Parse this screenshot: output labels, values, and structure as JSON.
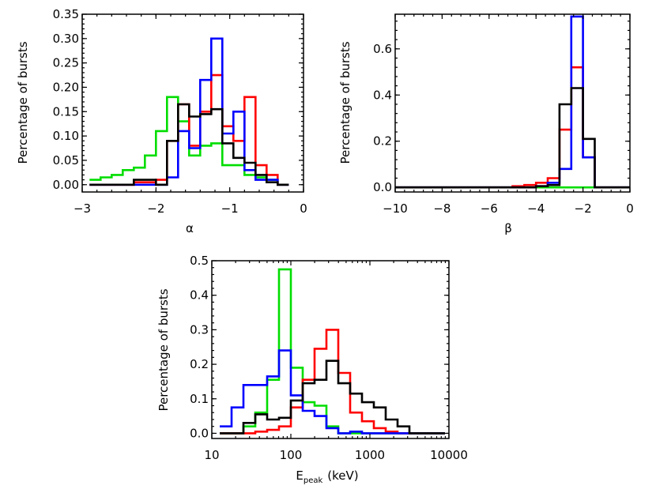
{
  "colors": {
    "red": "#ff0000",
    "green": "#00dd00",
    "blue": "#0000ff",
    "black": "#000000"
  },
  "chart_data": [
    {
      "id": "alpha",
      "type": "histogram",
      "xlabel": "α",
      "ylabel": "Percentage of bursts",
      "xlim": [
        -3,
        0
      ],
      "ylim": [
        -0.015,
        0.35
      ],
      "xticks": [
        -3,
        -2,
        -1,
        0
      ],
      "xtick_labels": [
        "−3",
        "−2",
        "−1",
        "0"
      ],
      "yticks": [
        0.0,
        0.05,
        0.1,
        0.15,
        0.2,
        0.25,
        0.3,
        0.35
      ],
      "ytick_labels": [
        "0.00",
        "0.05",
        "0.10",
        "0.15",
        "0.20",
        "0.25",
        "0.30",
        "0.35"
      ],
      "bin_edges": [
        -2.9,
        -2.75,
        -2.6,
        -2.45,
        -2.3,
        -2.15,
        -2.0,
        -1.85,
        -1.7,
        -1.55,
        -1.4,
        -1.25,
        -1.1,
        -0.95,
        -0.8,
        -0.65,
        -0.5,
        -0.35,
        -0.2
      ],
      "series": [
        {
          "color": "green",
          "values": [
            0.01,
            0.015,
            0.02,
            0.03,
            0.035,
            0.06,
            0.11,
            0.18,
            0.13,
            0.06,
            0.08,
            0.085,
            0.04,
            0.04,
            0.02,
            0.015,
            0.01,
            0.0
          ]
        },
        {
          "color": "red",
          "values": [
            0.0,
            0.0,
            0.0,
            0.0,
            0.005,
            0.005,
            0.01,
            0.09,
            0.165,
            0.08,
            0.15,
            0.225,
            0.12,
            0.09,
            0.18,
            0.04,
            0.02,
            0.0
          ]
        },
        {
          "color": "blue",
          "values": [
            0.0,
            0.0,
            0.0,
            0.0,
            0.0,
            0.0,
            0.0,
            0.015,
            0.11,
            0.075,
            0.215,
            0.3,
            0.105,
            0.15,
            0.03,
            0.01,
            0.01,
            0.0
          ]
        },
        {
          "color": "black",
          "values": [
            0.0,
            0.0,
            0.0,
            0.0,
            0.01,
            0.01,
            0.0,
            0.09,
            0.165,
            0.14,
            0.145,
            0.155,
            0.085,
            0.055,
            0.045,
            0.02,
            0.005,
            0.0
          ]
        }
      ]
    },
    {
      "id": "beta",
      "type": "histogram",
      "xlabel": "β",
      "ylabel": "Percentage of bursts",
      "xlim": [
        -10,
        0
      ],
      "ylim": [
        -0.02,
        0.75
      ],
      "xticks": [
        -10,
        -8,
        -6,
        -4,
        -2,
        0
      ],
      "xtick_labels": [
        "−10",
        "−8",
        "−6",
        "−4",
        "−2",
        "0"
      ],
      "yticks": [
        0.0,
        0.2,
        0.4,
        0.6
      ],
      "ytick_labels": [
        "0.0",
        "0.2",
        "0.4",
        "0.6"
      ],
      "bin_edges": [
        -10.0,
        -9.5,
        -9.0,
        -8.5,
        -8.0,
        -7.5,
        -7.0,
        -6.5,
        -6.0,
        -5.5,
        -5.0,
        -4.5,
        -4.0,
        -3.5,
        -3.0,
        -2.5,
        -2.0,
        -1.5,
        -1.0,
        -0.5,
        0.0
      ],
      "series": [
        {
          "color": "green",
          "values": [
            0,
            0,
            0,
            0,
            0,
            0,
            0,
            0,
            0,
            0,
            0,
            0,
            0,
            0,
            0,
            0,
            0,
            0,
            0,
            0
          ]
        },
        {
          "color": "red",
          "values": [
            0,
            0,
            0,
            0,
            0,
            0,
            0,
            0,
            0,
            0,
            0.005,
            0.01,
            0.02,
            0.04,
            0.25,
            0.52,
            0.13,
            0,
            0,
            0
          ]
        },
        {
          "color": "blue",
          "values": [
            0,
            0,
            0,
            0,
            0,
            0,
            0,
            0,
            0,
            0,
            0,
            0,
            0.005,
            0.02,
            0.08,
            0.74,
            0.13,
            0,
            0,
            0
          ]
        },
        {
          "color": "black",
          "values": [
            0,
            0,
            0,
            0,
            0,
            0,
            0,
            0,
            0,
            0,
            0,
            0,
            0.005,
            0.01,
            0.36,
            0.43,
            0.21,
            0,
            0,
            0
          ]
        }
      ]
    },
    {
      "id": "epeak",
      "type": "histogram",
      "xscale": "log",
      "xlabel_main": "E",
      "xlabel_sub": "peak",
      "xlabel_unit": "(keV)",
      "ylabel": "Percentage of bursts",
      "xlim": [
        10,
        10000
      ],
      "ylim": [
        -0.015,
        0.5
      ],
      "xticks": [
        10,
        100,
        1000,
        10000
      ],
      "xtick_labels": [
        "10",
        "100",
        "1000",
        "10000"
      ],
      "yticks": [
        0.0,
        0.1,
        0.2,
        0.3,
        0.4,
        0.5
      ],
      "ytick_labels": [
        "0.0",
        "0.1",
        "0.2",
        "0.3",
        "0.4",
        "0.5"
      ],
      "bin_edges_log10": [
        1.1,
        1.25,
        1.4,
        1.55,
        1.7,
        1.85,
        2.0,
        2.15,
        2.3,
        2.45,
        2.6,
        2.75,
        2.9,
        3.05,
        3.2,
        3.35,
        3.5,
        3.65,
        3.8,
        3.95
      ],
      "series": [
        {
          "color": "green",
          "values": [
            0,
            0,
            0.02,
            0.06,
            0.155,
            0.475,
            0.19,
            0.09,
            0.08,
            0.02,
            0,
            0,
            0,
            0,
            0,
            0,
            0,
            0,
            0
          ]
        },
        {
          "color": "red",
          "values": [
            0,
            0,
            0,
            0.005,
            0.01,
            0.02,
            0.075,
            0.155,
            0.245,
            0.3,
            0.175,
            0.06,
            0.035,
            0.015,
            0.005,
            0,
            0,
            0,
            0
          ]
        },
        {
          "color": "blue",
          "values": [
            0.02,
            0.075,
            0.14,
            0.14,
            0.165,
            0.24,
            0.11,
            0.065,
            0.05,
            0.015,
            0,
            0.005,
            0,
            0,
            0,
            0,
            0,
            0,
            0
          ]
        },
        {
          "color": "black",
          "values": [
            0,
            0,
            0.03,
            0.055,
            0.04,
            0.045,
            0.095,
            0.145,
            0.155,
            0.21,
            0.145,
            0.115,
            0.09,
            0.075,
            0.04,
            0.02,
            0,
            0,
            0
          ]
        }
      ]
    }
  ]
}
